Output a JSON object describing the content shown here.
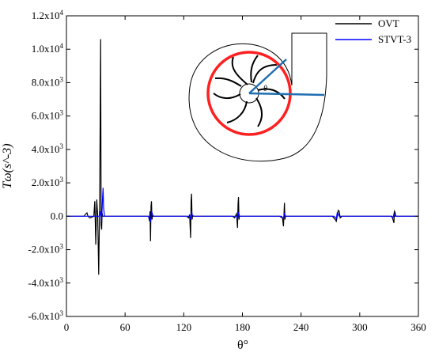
{
  "chart_data": {
    "type": "line",
    "title": "",
    "xlabel": "θ°",
    "ylabel": "Tω(s^-3)",
    "xlim": [
      0,
      360
    ],
    "ylim": [
      -6000,
      12000
    ],
    "x_ticks": [
      0,
      60,
      120,
      180,
      240,
      300,
      360
    ],
    "x_tick_labels": [
      "0",
      "60",
      "120",
      "180",
      "240",
      "300",
      "360"
    ],
    "y_ticks": [
      12000,
      10000,
      8000,
      6000,
      4000,
      2000,
      0,
      -2000,
      -4000,
      -6000
    ],
    "y_tick_labels": [
      {
        "mantissa": "1.2x10",
        "exp": "4"
      },
      {
        "mantissa": "1.0x10",
        "exp": "4"
      },
      {
        "mantissa": "8.0x10",
        "exp": "3"
      },
      {
        "mantissa": "6.0x10",
        "exp": "3"
      },
      {
        "mantissa": "4.0x10",
        "exp": "3"
      },
      {
        "mantissa": "2.0x10",
        "exp": "3"
      },
      {
        "mantissa": "0.0",
        "exp": ""
      },
      {
        "mantissa": "-2.0x10",
        "exp": "3"
      },
      {
        "mantissa": "-4.0x10",
        "exp": "3"
      },
      {
        "mantissa": "-6.0x10",
        "exp": "3"
      }
    ],
    "grid": false,
    "legend_position": "top-right",
    "series": [
      {
        "name": "OVT",
        "color": "#000000",
        "x": [
          0,
          18,
          20,
          21,
          22,
          24,
          26,
          28,
          29,
          30,
          31,
          32,
          33,
          34,
          35,
          35.5,
          36,
          36.5,
          37,
          38,
          40,
          45,
          84,
          85,
          85.5,
          86,
          86.5,
          87,
          87.5,
          88,
          89,
          92,
          123,
          125,
          126,
          127,
          127.5,
          128,
          128.5,
          129,
          130,
          133,
          170,
          172,
          174,
          175,
          175.5,
          176,
          176.5,
          177,
          180,
          218,
          221,
          222,
          222.5,
          223,
          223.5,
          224,
          224.5,
          226,
          272,
          275,
          276,
          277,
          278,
          279,
          280,
          282,
          330,
          333,
          334,
          335,
          335.5,
          336,
          337,
          340,
          360
        ],
        "y": [
          0,
          0,
          150,
          200,
          0,
          -100,
          -50,
          0,
          900,
          -1700,
          1000,
          0,
          -3500,
          1000,
          10600,
          -500,
          -800,
          200,
          0,
          0,
          0,
          0,
          0,
          -300,
          300,
          -1500,
          600,
          900,
          -200,
          0,
          0,
          0,
          0,
          -100,
          100,
          -1300,
          900,
          1350,
          -200,
          0,
          0,
          0,
          0,
          -100,
          150,
          -700,
          700,
          1150,
          -200,
          0,
          0,
          0,
          -100,
          -600,
          100,
          800,
          -200,
          0,
          0,
          0,
          0,
          -200,
          -300,
          0,
          350,
          300,
          -100,
          0,
          0,
          0,
          -200,
          -400,
          300,
          250,
          0,
          0,
          0
        ]
      },
      {
        "name": "STVT-3",
        "color": "#0000ff",
        "x": [
          0,
          30,
          34,
          35,
          36,
          37,
          37.5,
          38,
          39,
          40,
          45,
          84,
          85,
          86,
          87,
          88,
          89,
          92,
          124,
          126,
          127,
          128,
          128.5,
          130,
          172,
          174,
          175,
          176,
          177,
          180,
          220,
          222,
          223,
          224,
          226,
          274,
          276,
          277,
          278,
          279,
          282,
          332,
          334,
          335,
          336,
          338,
          360
        ],
        "y": [
          0,
          0,
          0,
          300,
          -300,
          1200,
          1700,
          500,
          0,
          0,
          0,
          0,
          -150,
          -350,
          350,
          100,
          0,
          0,
          0,
          0,
          -200,
          300,
          100,
          0,
          0,
          0,
          -200,
          250,
          0,
          0,
          0,
          -150,
          200,
          0,
          0,
          0,
          -150,
          200,
          150,
          0,
          0,
          0,
          -100,
          150,
          0,
          0,
          0
        ]
      }
    ],
    "inset": {
      "content": "pump casing schematic with impeller and θ angle",
      "angle_label": "θ",
      "colors": {
        "casing": "#000000",
        "circle": "#ff0000",
        "angle_lines": "#1f6fb2"
      }
    }
  }
}
